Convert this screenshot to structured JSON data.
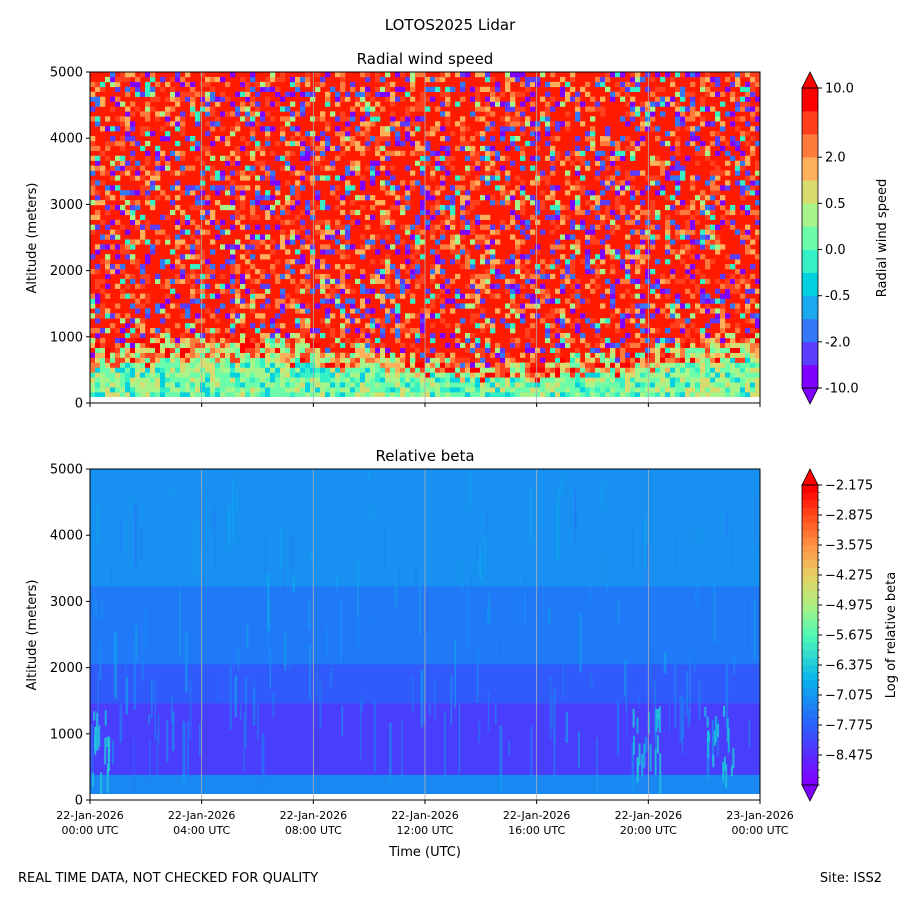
{
  "suptitle": "LOTOS2025 Lidar",
  "footer": {
    "left": "REAL TIME DATA, NOT CHECKED FOR QUALITY",
    "right": "Site: ISS2"
  },
  "chart_data": [
    {
      "type": "heatmap",
      "title": "Radial wind speed",
      "xlabel": "",
      "ylabel": "Altitude (meters)",
      "ylim": [
        0,
        5000
      ],
      "yticks": [
        "0",
        "1000",
        "2000",
        "3000",
        "4000",
        "5000"
      ],
      "colorbar": {
        "label": "Radial wind speed",
        "ticks": [
          "-10.0",
          "-2.0",
          "-0.5",
          "0.0",
          "0.5",
          "2.0",
          "10.0"
        ],
        "levels": 13,
        "extend": "both",
        "colors": [
          "#8000ff",
          "#5a3dfd",
          "#3478f9",
          "#1aa8ee",
          "#04d1e0",
          "#36f0c5",
          "#6cfdaa",
          "#a6f48a",
          "#d8dc6e",
          "#ffb05a",
          "#ff7b3c",
          "#ff3f1e",
          "#ff0000"
        ]
      }
    },
    {
      "type": "heatmap",
      "title": "Relative beta",
      "xlabel": "Time (UTC)",
      "ylabel": "Altitude (meters)",
      "ylim": [
        0,
        5000
      ],
      "yticks": [
        "0",
        "1000",
        "2000",
        "3000",
        "4000",
        "5000"
      ],
      "xticks": [
        {
          "date": "22-Jan-2026",
          "time": "00:00 UTC"
        },
        {
          "date": "22-Jan-2026",
          "time": "04:00 UTC"
        },
        {
          "date": "22-Jan-2026",
          "time": "08:00 UTC"
        },
        {
          "date": "22-Jan-2026",
          "time": "12:00 UTC"
        },
        {
          "date": "22-Jan-2026",
          "time": "16:00 UTC"
        },
        {
          "date": "22-Jan-2026",
          "time": "20:00 UTC"
        },
        {
          "date": "23-Jan-2026",
          "time": "00:00 UTC"
        }
      ],
      "colorbar": {
        "label": "Log of relative beta",
        "ticks": [
          "−2.175",
          "−2.875",
          "−3.575",
          "−4.275",
          "−4.975",
          "−5.675",
          "−6.375",
          "−7.075",
          "−7.775",
          "−8.475"
        ],
        "range": [
          -9.175,
          -2.175
        ],
        "extend": "both"
      }
    }
  ]
}
